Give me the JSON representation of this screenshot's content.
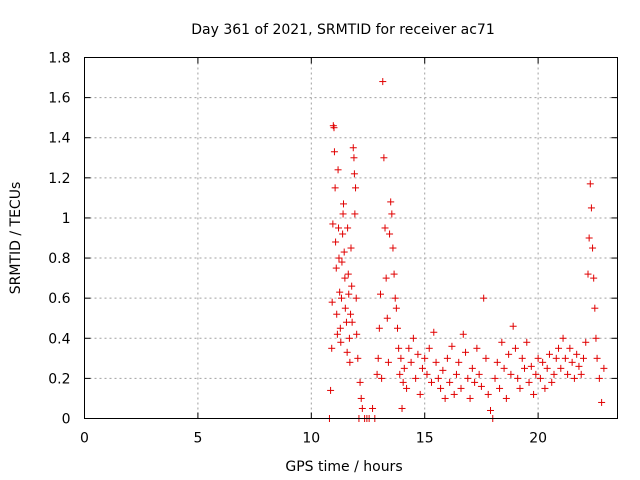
{
  "chart_data": {
    "type": "scatter",
    "title": "Day 361 of 2021, SRMTID for receiver ac71",
    "xlabel": "GPS time / hours",
    "ylabel": "SRMTID / TECUs",
    "xlim": [
      0,
      23.5
    ],
    "ylim": [
      0,
      1.8
    ],
    "xticks": [
      0,
      5,
      10,
      15,
      20
    ],
    "yticks": [
      0,
      0.2,
      0.4,
      0.6,
      0.8,
      1,
      1.2,
      1.4,
      1.6,
      1.8
    ],
    "xtick_labels": [
      "0",
      "5",
      "10",
      "15",
      "20"
    ],
    "ytick_labels": [
      "0",
      "0.2",
      "0.4",
      "0.6",
      "0.8",
      "1",
      "1.2",
      "1.4",
      "1.6",
      "1.8"
    ],
    "grid": true,
    "marker": "plus",
    "color": "#e00000",
    "series": [
      {
        "name": "ac71",
        "points": [
          [
            10.8,
            0.0
          ],
          [
            10.85,
            0.14
          ],
          [
            10.9,
            0.35
          ],
          [
            10.92,
            0.58
          ],
          [
            10.95,
            0.97
          ],
          [
            10.97,
            1.46
          ],
          [
            11.0,
            1.45
          ],
          [
            11.02,
            1.33
          ],
          [
            11.05,
            1.15
          ],
          [
            11.07,
            0.88
          ],
          [
            11.1,
            0.75
          ],
          [
            11.12,
            0.52
          ],
          [
            11.15,
            0.42
          ],
          [
            11.18,
            1.24
          ],
          [
            11.2,
            0.95
          ],
          [
            11.22,
            0.8
          ],
          [
            11.25,
            0.63
          ],
          [
            11.28,
            0.45
          ],
          [
            11.3,
            0.38
          ],
          [
            11.33,
            0.6
          ],
          [
            11.35,
            0.78
          ],
          [
            11.38,
            0.92
          ],
          [
            11.4,
            1.02
          ],
          [
            11.42,
            1.07
          ],
          [
            11.45,
            0.83
          ],
          [
            11.48,
            0.7
          ],
          [
            11.5,
            0.55
          ],
          [
            11.55,
            0.48
          ],
          [
            11.58,
            0.33
          ],
          [
            11.6,
            0.95
          ],
          [
            11.63,
            0.72
          ],
          [
            11.65,
            0.62
          ],
          [
            11.68,
            0.4
          ],
          [
            11.7,
            0.28
          ],
          [
            11.73,
            0.52
          ],
          [
            11.75,
            0.85
          ],
          [
            11.78,
            0.66
          ],
          [
            11.8,
            0.48
          ],
          [
            11.85,
            1.35
          ],
          [
            11.88,
            1.3
          ],
          [
            11.9,
            1.22
          ],
          [
            11.92,
            1.02
          ],
          [
            11.95,
            1.15
          ],
          [
            11.98,
            0.6
          ],
          [
            12.0,
            0.42
          ],
          [
            12.05,
            0.3
          ],
          [
            12.1,
            0.0
          ],
          [
            12.15,
            0.18
          ],
          [
            12.2,
            0.1
          ],
          [
            12.25,
            0.05
          ],
          [
            12.35,
            0.0
          ],
          [
            12.45,
            0.0
          ],
          [
            12.55,
            0.0
          ],
          [
            12.7,
            0.05
          ],
          [
            12.8,
            0.0
          ],
          [
            12.9,
            0.22
          ],
          [
            12.95,
            0.3
          ],
          [
            13.0,
            0.45
          ],
          [
            13.05,
            0.62
          ],
          [
            13.1,
            0.2
          ],
          [
            13.15,
            1.68
          ],
          [
            13.2,
            1.3
          ],
          [
            13.25,
            0.95
          ],
          [
            13.3,
            0.7
          ],
          [
            13.35,
            0.5
          ],
          [
            13.4,
            0.28
          ],
          [
            13.45,
            0.92
          ],
          [
            13.5,
            1.08
          ],
          [
            13.55,
            1.02
          ],
          [
            13.6,
            0.85
          ],
          [
            13.65,
            0.72
          ],
          [
            13.7,
            0.6
          ],
          [
            13.75,
            0.55
          ],
          [
            13.8,
            0.45
          ],
          [
            13.85,
            0.35
          ],
          [
            13.9,
            0.22
          ],
          [
            13.95,
            0.3
          ],
          [
            14.0,
            0.05
          ],
          [
            14.05,
            0.18
          ],
          [
            14.1,
            0.25
          ],
          [
            14.2,
            0.15
          ],
          [
            14.3,
            0.35
          ],
          [
            14.4,
            0.28
          ],
          [
            14.5,
            0.4
          ],
          [
            14.6,
            0.2
          ],
          [
            14.7,
            0.32
          ],
          [
            14.8,
            0.12
          ],
          [
            14.9,
            0.25
          ],
          [
            15.0,
            0.3
          ],
          [
            15.1,
            0.22
          ],
          [
            15.2,
            0.35
          ],
          [
            15.3,
            0.18
          ],
          [
            15.4,
            0.43
          ],
          [
            15.5,
            0.28
          ],
          [
            15.6,
            0.2
          ],
          [
            15.7,
            0.15
          ],
          [
            15.8,
            0.24
          ],
          [
            15.9,
            0.1
          ],
          [
            16.0,
            0.3
          ],
          [
            16.1,
            0.18
          ],
          [
            16.2,
            0.36
          ],
          [
            16.3,
            0.12
          ],
          [
            16.4,
            0.22
          ],
          [
            16.5,
            0.28
          ],
          [
            16.6,
            0.15
          ],
          [
            16.7,
            0.42
          ],
          [
            16.8,
            0.33
          ],
          [
            16.9,
            0.2
          ],
          [
            17.0,
            0.1
          ],
          [
            17.1,
            0.25
          ],
          [
            17.2,
            0.18
          ],
          [
            17.3,
            0.35
          ],
          [
            17.4,
            0.22
          ],
          [
            17.5,
            0.16
          ],
          [
            17.6,
            0.6
          ],
          [
            17.7,
            0.3
          ],
          [
            17.8,
            0.12
          ],
          [
            17.9,
            0.04
          ],
          [
            18.0,
            0.0
          ],
          [
            18.1,
            0.2
          ],
          [
            18.2,
            0.28
          ],
          [
            18.3,
            0.15
          ],
          [
            18.4,
            0.38
          ],
          [
            18.5,
            0.25
          ],
          [
            18.6,
            0.1
          ],
          [
            18.7,
            0.32
          ],
          [
            18.8,
            0.22
          ],
          [
            18.9,
            0.46
          ],
          [
            19.0,
            0.35
          ],
          [
            19.1,
            0.2
          ],
          [
            19.2,
            0.15
          ],
          [
            19.3,
            0.3
          ],
          [
            19.4,
            0.25
          ],
          [
            19.5,
            0.38
          ],
          [
            19.6,
            0.18
          ],
          [
            19.7,
            0.26
          ],
          [
            19.8,
            0.12
          ],
          [
            19.9,
            0.22
          ],
          [
            20.0,
            0.3
          ],
          [
            20.1,
            0.2
          ],
          [
            20.2,
            0.28
          ],
          [
            20.3,
            0.15
          ],
          [
            20.4,
            0.25
          ],
          [
            20.5,
            0.32
          ],
          [
            20.6,
            0.18
          ],
          [
            20.7,
            0.22
          ],
          [
            20.8,
            0.3
          ],
          [
            20.9,
            0.35
          ],
          [
            21.0,
            0.25
          ],
          [
            21.1,
            0.4
          ],
          [
            21.2,
            0.3
          ],
          [
            21.3,
            0.22
          ],
          [
            21.4,
            0.35
          ],
          [
            21.5,
            0.28
          ],
          [
            21.6,
            0.2
          ],
          [
            21.7,
            0.32
          ],
          [
            21.8,
            0.26
          ],
          [
            21.9,
            0.22
          ],
          [
            22.0,
            0.3
          ],
          [
            22.1,
            0.38
          ],
          [
            22.2,
            0.72
          ],
          [
            22.25,
            0.9
          ],
          [
            22.3,
            1.17
          ],
          [
            22.35,
            1.05
          ],
          [
            22.4,
            0.85
          ],
          [
            22.45,
            0.7
          ],
          [
            22.5,
            0.55
          ],
          [
            22.55,
            0.4
          ],
          [
            22.6,
            0.3
          ],
          [
            22.7,
            0.2
          ],
          [
            22.8,
            0.08
          ],
          [
            22.9,
            0.25
          ]
        ]
      }
    ]
  }
}
